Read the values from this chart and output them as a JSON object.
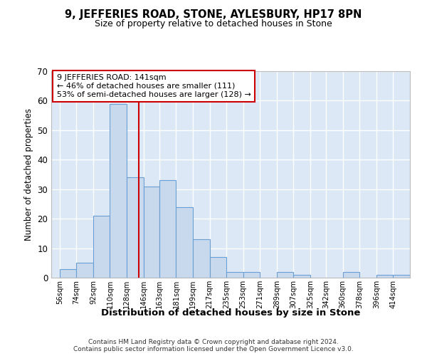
{
  "title": "9, JEFFERIES ROAD, STONE, AYLESBURY, HP17 8PN",
  "subtitle": "Size of property relative to detached houses in Stone",
  "xlabel": "Distribution of detached houses by size in Stone",
  "ylabel": "Number of detached properties",
  "bar_color": "#c8d9ee",
  "bar_edge_color": "#6a9fd4",
  "plot_bg_color": "#dce8f5",
  "fig_bg_color": "#ffffff",
  "grid_color": "#ffffff",
  "bin_edges": [
    56,
    74,
    92,
    110,
    128,
    146,
    163,
    181,
    199,
    217,
    235,
    253,
    271,
    289,
    307,
    325,
    342,
    360,
    378,
    396,
    414
  ],
  "bar_heights": [
    3,
    5,
    21,
    59,
    34,
    31,
    33,
    24,
    13,
    7,
    2,
    2,
    0,
    2,
    1,
    0,
    0,
    2,
    0,
    1,
    1
  ],
  "property_size": 141,
  "vline_color": "#cc0000",
  "annotation_title": "9 JEFFERIES ROAD: 141sqm",
  "annotation_line2": "← 46% of detached houses are smaller (111)",
  "annotation_line3": "53% of semi-detached houses are larger (128) →",
  "annotation_box_color": "#ffffff",
  "annotation_box_edge": "#cc0000",
  "ylim": [
    0,
    70
  ],
  "yticks": [
    0,
    10,
    20,
    30,
    40,
    50,
    60,
    70
  ],
  "xlim_min": 47,
  "xlim_max": 432,
  "footer_line1": "Contains HM Land Registry data © Crown copyright and database right 2024.",
  "footer_line2": "Contains public sector information licensed under the Open Government Licence v3.0."
}
